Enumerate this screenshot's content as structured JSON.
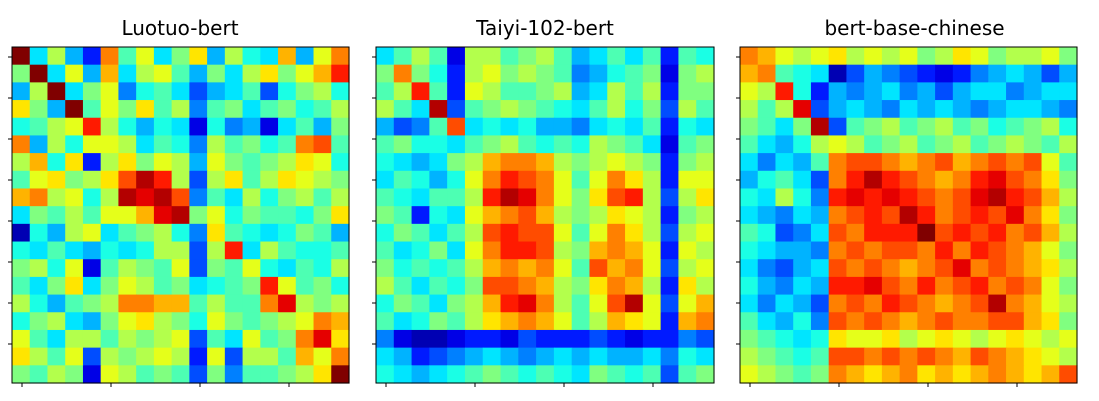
{
  "chart_data": [
    {
      "type": "heatmap",
      "title": "Luotuo-bert",
      "xlabel": "",
      "ylabel": "",
      "colormap": "jet",
      "value_range": [
        0,
        1
      ],
      "x_tick_labels": [],
      "y_tick_labels": [],
      "values": [
        [
          1.0,
          0.35,
          0.55,
          0.3,
          0.15,
          0.75,
          0.45,
          0.6,
          0.35,
          0.5,
          0.65,
          0.3,
          0.55,
          0.4,
          0.35,
          0.7,
          0.3,
          0.6,
          0.75
        ],
        [
          0.5,
          1.0,
          0.35,
          0.6,
          0.3,
          0.7,
          0.35,
          0.55,
          0.6,
          0.45,
          0.3,
          0.5,
          0.35,
          0.55,
          0.65,
          0.5,
          0.6,
          0.7,
          0.85
        ],
        [
          0.3,
          0.55,
          1.0,
          0.35,
          0.5,
          0.6,
          0.25,
          0.4,
          0.45,
          0.35,
          0.2,
          0.3,
          0.35,
          0.45,
          0.2,
          0.4,
          0.5,
          0.55,
          0.4
        ],
        [
          0.65,
          0.5,
          0.3,
          1.0,
          0.45,
          0.6,
          0.5,
          0.65,
          0.45,
          0.55,
          0.25,
          0.45,
          0.5,
          0.35,
          0.45,
          0.5,
          0.4,
          0.45,
          0.55
        ],
        [
          0.4,
          0.45,
          0.55,
          0.6,
          0.85,
          0.55,
          0.4,
          0.3,
          0.4,
          0.35,
          0.1,
          0.4,
          0.25,
          0.3,
          0.1,
          0.35,
          0.45,
          0.3,
          0.5
        ],
        [
          0.75,
          0.3,
          0.55,
          0.4,
          0.6,
          0.6,
          0.55,
          0.35,
          0.45,
          0.4,
          0.25,
          0.55,
          0.45,
          0.5,
          0.4,
          0.45,
          0.75,
          0.8,
          0.45
        ],
        [
          0.55,
          0.7,
          0.4,
          0.65,
          0.15,
          0.55,
          0.65,
          0.5,
          0.6,
          0.55,
          0.3,
          0.6,
          0.5,
          0.45,
          0.5,
          0.55,
          0.65,
          0.6,
          0.4
        ],
        [
          0.45,
          0.6,
          0.65,
          0.5,
          0.55,
          0.65,
          0.8,
          0.95,
          0.85,
          0.55,
          0.2,
          0.55,
          0.65,
          0.45,
          0.55,
          0.65,
          0.6,
          0.55,
          0.5
        ],
        [
          0.7,
          0.75,
          0.55,
          0.6,
          0.4,
          0.55,
          0.95,
          0.9,
          0.95,
          0.8,
          0.25,
          0.45,
          0.35,
          0.55,
          0.4,
          0.5,
          0.55,
          0.45,
          0.55
        ],
        [
          0.35,
          0.5,
          0.45,
          0.55,
          0.45,
          0.6,
          0.6,
          0.7,
          0.9,
          0.95,
          0.5,
          0.6,
          0.4,
          0.5,
          0.45,
          0.45,
          0.4,
          0.5,
          0.65
        ],
        [
          0.05,
          0.4,
          0.3,
          0.55,
          0.6,
          0.35,
          0.45,
          0.5,
          0.55,
          0.4,
          0.25,
          0.65,
          0.45,
          0.4,
          0.35,
          0.4,
          0.5,
          0.45,
          0.3
        ],
        [
          0.4,
          0.35,
          0.45,
          0.35,
          0.3,
          0.4,
          0.35,
          0.4,
          0.55,
          0.55,
          0.2,
          0.55,
          0.85,
          0.35,
          0.55,
          0.45,
          0.4,
          0.4,
          0.45
        ],
        [
          0.5,
          0.55,
          0.4,
          0.6,
          0.1,
          0.45,
          0.55,
          0.5,
          0.45,
          0.6,
          0.2,
          0.5,
          0.45,
          0.6,
          0.4,
          0.35,
          0.45,
          0.4,
          0.55
        ],
        [
          0.45,
          0.35,
          0.5,
          0.65,
          0.35,
          0.5,
          0.6,
          0.55,
          0.45,
          0.5,
          0.35,
          0.4,
          0.45,
          0.5,
          0.85,
          0.6,
          0.45,
          0.5,
          0.4
        ],
        [
          0.55,
          0.4,
          0.3,
          0.45,
          0.5,
          0.55,
          0.75,
          0.75,
          0.7,
          0.7,
          0.45,
          0.55,
          0.45,
          0.45,
          0.75,
          0.9,
          0.55,
          0.5,
          0.55
        ],
        [
          0.4,
          0.5,
          0.55,
          0.35,
          0.3,
          0.5,
          0.6,
          0.65,
          0.55,
          0.5,
          0.4,
          0.6,
          0.5,
          0.45,
          0.5,
          0.55,
          0.6,
          0.75,
          0.7
        ],
        [
          0.6,
          0.45,
          0.35,
          0.55,
          0.55,
          0.45,
          0.55,
          0.5,
          0.55,
          0.6,
          0.2,
          0.45,
          0.35,
          0.6,
          0.45,
          0.5,
          0.75,
          0.9,
          0.65
        ],
        [
          0.65,
          0.55,
          0.45,
          0.6,
          0.2,
          0.55,
          0.5,
          0.55,
          0.6,
          0.55,
          0.15,
          0.6,
          0.2,
          0.55,
          0.55,
          0.45,
          0.7,
          0.6,
          0.75
        ],
        [
          0.5,
          0.45,
          0.55,
          0.5,
          0.1,
          0.6,
          0.55,
          0.45,
          0.5,
          0.45,
          0.2,
          0.5,
          0.25,
          0.45,
          0.45,
          0.5,
          0.55,
          0.65,
          1.0
        ]
      ]
    },
    {
      "type": "heatmap",
      "title": "Taiyi-102-bert",
      "xlabel": "",
      "ylabel": "",
      "colormap": "jet",
      "value_range": [
        0,
        1
      ],
      "x_tick_labels": [],
      "y_tick_labels": [],
      "values": [
        [
          0.35,
          0.45,
          0.55,
          0.45,
          0.1,
          0.55,
          0.55,
          0.45,
          0.5,
          0.55,
          0.45,
          0.3,
          0.35,
          0.45,
          0.35,
          0.45,
          0.15,
          0.45,
          0.4
        ],
        [
          0.5,
          0.75,
          0.5,
          0.4,
          0.15,
          0.55,
          0.6,
          0.5,
          0.55,
          0.5,
          0.45,
          0.25,
          0.3,
          0.4,
          0.45,
          0.5,
          0.1,
          0.5,
          0.55
        ],
        [
          0.45,
          0.55,
          0.85,
          0.45,
          0.15,
          0.6,
          0.55,
          0.45,
          0.45,
          0.5,
          0.55,
          0.3,
          0.35,
          0.55,
          0.45,
          0.55,
          0.15,
          0.5,
          0.5
        ],
        [
          0.55,
          0.45,
          0.35,
          0.95,
          0.2,
          0.45,
          0.5,
          0.55,
          0.5,
          0.45,
          0.4,
          0.35,
          0.45,
          0.55,
          0.4,
          0.5,
          0.2,
          0.55,
          0.45
        ],
        [
          0.3,
          0.2,
          0.25,
          0.45,
          0.8,
          0.35,
          0.4,
          0.35,
          0.4,
          0.3,
          0.3,
          0.25,
          0.35,
          0.4,
          0.35,
          0.45,
          0.15,
          0.4,
          0.35
        ],
        [
          0.45,
          0.5,
          0.4,
          0.4,
          0.35,
          0.45,
          0.5,
          0.55,
          0.45,
          0.4,
          0.45,
          0.4,
          0.55,
          0.5,
          0.45,
          0.35,
          0.1,
          0.45,
          0.5
        ],
        [
          0.4,
          0.35,
          0.3,
          0.35,
          0.5,
          0.55,
          0.7,
          0.75,
          0.75,
          0.7,
          0.55,
          0.5,
          0.55,
          0.6,
          0.55,
          0.5,
          0.15,
          0.5,
          0.55
        ],
        [
          0.35,
          0.45,
          0.4,
          0.3,
          0.4,
          0.6,
          0.75,
          0.85,
          0.8,
          0.75,
          0.6,
          0.45,
          0.6,
          0.75,
          0.65,
          0.55,
          0.15,
          0.6,
          0.6
        ],
        [
          0.45,
          0.4,
          0.35,
          0.45,
          0.45,
          0.55,
          0.85,
          0.95,
          0.9,
          0.75,
          0.6,
          0.5,
          0.65,
          0.8,
          0.85,
          0.55,
          0.2,
          0.55,
          0.65
        ],
        [
          0.5,
          0.45,
          0.15,
          0.4,
          0.35,
          0.6,
          0.7,
          0.75,
          0.8,
          0.7,
          0.55,
          0.5,
          0.55,
          0.65,
          0.6,
          0.55,
          0.15,
          0.5,
          0.55
        ],
        [
          0.4,
          0.5,
          0.45,
          0.35,
          0.45,
          0.55,
          0.8,
          0.85,
          0.8,
          0.8,
          0.6,
          0.45,
          0.6,
          0.75,
          0.65,
          0.55,
          0.2,
          0.55,
          0.6
        ],
        [
          0.45,
          0.35,
          0.4,
          0.5,
          0.35,
          0.6,
          0.75,
          0.85,
          0.85,
          0.8,
          0.55,
          0.5,
          0.7,
          0.75,
          0.7,
          0.6,
          0.15,
          0.6,
          0.55
        ],
        [
          0.5,
          0.4,
          0.45,
          0.4,
          0.45,
          0.55,
          0.7,
          0.75,
          0.7,
          0.75,
          0.6,
          0.45,
          0.8,
          0.7,
          0.75,
          0.6,
          0.2,
          0.55,
          0.6
        ],
        [
          0.55,
          0.45,
          0.35,
          0.45,
          0.4,
          0.5,
          0.8,
          0.8,
          0.75,
          0.7,
          0.55,
          0.5,
          0.65,
          0.75,
          0.7,
          0.55,
          0.15,
          0.65,
          0.55
        ],
        [
          0.4,
          0.5,
          0.45,
          0.35,
          0.5,
          0.55,
          0.7,
          0.85,
          0.9,
          0.75,
          0.55,
          0.45,
          0.6,
          0.8,
          0.95,
          0.6,
          0.2,
          0.6,
          0.7
        ],
        [
          0.45,
          0.35,
          0.4,
          0.5,
          0.45,
          0.55,
          0.65,
          0.7,
          0.75,
          0.7,
          0.6,
          0.45,
          0.55,
          0.7,
          0.65,
          0.6,
          0.15,
          0.7,
          0.75
        ],
        [
          0.25,
          0.1,
          0.05,
          0.05,
          0.1,
          0.15,
          0.15,
          0.1,
          0.2,
          0.15,
          0.15,
          0.15,
          0.2,
          0.15,
          0.1,
          0.15,
          0.15,
          0.25,
          0.2
        ],
        [
          0.35,
          0.3,
          0.15,
          0.2,
          0.25,
          0.3,
          0.35,
          0.3,
          0.25,
          0.3,
          0.35,
          0.3,
          0.35,
          0.3,
          0.3,
          0.35,
          0.25,
          0.4,
          0.35
        ],
        [
          0.4,
          0.35,
          0.3,
          0.35,
          0.4,
          0.45,
          0.5,
          0.45,
          0.4,
          0.45,
          0.4,
          0.35,
          0.5,
          0.45,
          0.4,
          0.45,
          0.2,
          0.45,
          0.5
        ]
      ]
    },
    {
      "type": "heatmap",
      "title": "bert-base-chinese",
      "xlabel": "",
      "ylabel": "",
      "colormap": "jet",
      "value_range": [
        0,
        1
      ],
      "x_tick_labels": [],
      "y_tick_labels": [],
      "values": [
        [
          0.75,
          0.7,
          0.6,
          0.55,
          0.6,
          0.65,
          0.55,
          0.6,
          0.55,
          0.6,
          0.5,
          0.55,
          0.65,
          0.6,
          0.5,
          0.55,
          0.55,
          0.6,
          0.5
        ],
        [
          0.7,
          0.75,
          0.45,
          0.4,
          0.35,
          0.05,
          0.2,
          0.3,
          0.25,
          0.2,
          0.15,
          0.1,
          0.15,
          0.25,
          0.3,
          0.35,
          0.3,
          0.2,
          0.3
        ],
        [
          0.6,
          0.55,
          0.85,
          0.4,
          0.15,
          0.3,
          0.25,
          0.3,
          0.35,
          0.25,
          0.3,
          0.2,
          0.3,
          0.35,
          0.35,
          0.25,
          0.3,
          0.35,
          0.35
        ],
        [
          0.55,
          0.45,
          0.55,
          0.9,
          0.2,
          0.3,
          0.35,
          0.3,
          0.25,
          0.35,
          0.3,
          0.35,
          0.3,
          0.25,
          0.3,
          0.35,
          0.35,
          0.3,
          0.25
        ],
        [
          0.5,
          0.45,
          0.35,
          0.5,
          0.95,
          0.2,
          0.45,
          0.5,
          0.55,
          0.45,
          0.5,
          0.55,
          0.45,
          0.5,
          0.4,
          0.45,
          0.5,
          0.55,
          0.4
        ],
        [
          0.45,
          0.35,
          0.3,
          0.4,
          0.55,
          0.6,
          0.55,
          0.45,
          0.5,
          0.55,
          0.45,
          0.5,
          0.55,
          0.45,
          0.5,
          0.55,
          0.5,
          0.45,
          0.55
        ],
        [
          0.35,
          0.25,
          0.35,
          0.3,
          0.45,
          0.75,
          0.8,
          0.8,
          0.75,
          0.7,
          0.75,
          0.8,
          0.7,
          0.75,
          0.8,
          0.75,
          0.8,
          0.6,
          0.45
        ],
        [
          0.3,
          0.4,
          0.45,
          0.35,
          0.2,
          0.75,
          0.85,
          0.95,
          0.85,
          0.8,
          0.75,
          0.7,
          0.75,
          0.85,
          0.9,
          0.8,
          0.75,
          0.65,
          0.5
        ],
        [
          0.4,
          0.35,
          0.55,
          0.4,
          0.25,
          0.85,
          0.9,
          0.85,
          0.9,
          0.85,
          0.8,
          0.75,
          0.8,
          0.9,
          0.95,
          0.85,
          0.8,
          0.7,
          0.55
        ],
        [
          0.35,
          0.3,
          0.25,
          0.35,
          0.3,
          0.75,
          0.8,
          0.85,
          0.8,
          0.95,
          0.85,
          0.75,
          0.8,
          0.85,
          0.8,
          0.9,
          0.75,
          0.65,
          0.5
        ],
        [
          0.45,
          0.4,
          0.2,
          0.25,
          0.35,
          0.8,
          0.75,
          0.85,
          0.85,
          0.85,
          1.0,
          0.8,
          0.85,
          0.8,
          0.85,
          0.75,
          0.8,
          0.7,
          0.55
        ],
        [
          0.4,
          0.35,
          0.3,
          0.3,
          0.25,
          0.75,
          0.8,
          0.75,
          0.8,
          0.8,
          0.75,
          0.85,
          0.75,
          0.85,
          0.8,
          0.75,
          0.7,
          0.6,
          0.5
        ],
        [
          0.35,
          0.25,
          0.2,
          0.3,
          0.35,
          0.8,
          0.75,
          0.8,
          0.75,
          0.7,
          0.75,
          0.8,
          0.9,
          0.75,
          0.8,
          0.75,
          0.7,
          0.65,
          0.55
        ],
        [
          0.4,
          0.3,
          0.25,
          0.35,
          0.3,
          0.85,
          0.85,
          0.9,
          0.8,
          0.75,
          0.85,
          0.75,
          0.8,
          0.85,
          0.75,
          0.8,
          0.75,
          0.6,
          0.5
        ],
        [
          0.35,
          0.25,
          0.35,
          0.3,
          0.2,
          0.75,
          0.8,
          0.75,
          0.85,
          0.8,
          0.75,
          0.7,
          0.75,
          0.8,
          0.95,
          0.75,
          0.7,
          0.6,
          0.55
        ],
        [
          0.45,
          0.35,
          0.3,
          0.4,
          0.25,
          0.8,
          0.75,
          0.8,
          0.75,
          0.7,
          0.75,
          0.8,
          0.75,
          0.75,
          0.8,
          0.8,
          0.7,
          0.65,
          0.5
        ],
        [
          0.5,
          0.45,
          0.4,
          0.35,
          0.4,
          0.65,
          0.6,
          0.6,
          0.65,
          0.55,
          0.6,
          0.65,
          0.6,
          0.55,
          0.6,
          0.65,
          0.6,
          0.55,
          0.6
        ],
        [
          0.55,
          0.5,
          0.45,
          0.4,
          0.45,
          0.8,
          0.8,
          0.75,
          0.8,
          0.75,
          0.8,
          0.75,
          0.7,
          0.8,
          0.75,
          0.7,
          0.65,
          0.6,
          0.55
        ],
        [
          0.6,
          0.55,
          0.5,
          0.45,
          0.5,
          0.75,
          0.7,
          0.65,
          0.7,
          0.75,
          0.65,
          0.7,
          0.65,
          0.7,
          0.75,
          0.7,
          0.65,
          0.7,
          0.8
        ]
      ]
    }
  ]
}
